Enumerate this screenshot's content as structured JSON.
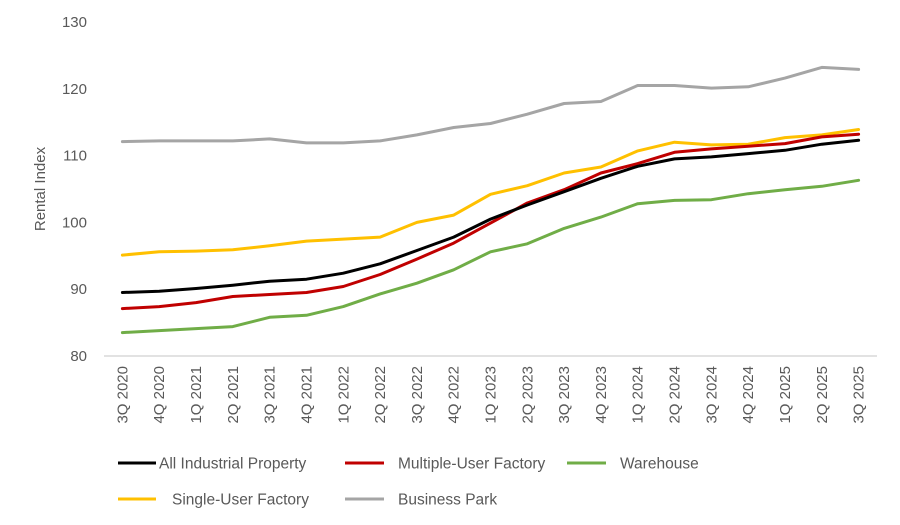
{
  "chart_data": {
    "type": "line",
    "title": "",
    "xlabel": "",
    "ylabel": "Rental Index",
    "ylim": [
      80,
      130
    ],
    "yticks": [
      80,
      90,
      100,
      110,
      120,
      130
    ],
    "ytick_labels": [
      "80",
      "90",
      "100",
      "110",
      "120",
      "130"
    ],
    "grid": false,
    "legend_position": "bottom",
    "categories": [
      "3Q 2020",
      "4Q 2020",
      "1Q 2021",
      "2Q 2021",
      "3Q 2021",
      "4Q 2021",
      "1Q 2022",
      "2Q 2022",
      "3Q 2022",
      "4Q 2022",
      "1Q 2023",
      "2Q 2023",
      "3Q 2023",
      "4Q 2023",
      "1Q 2024",
      "2Q 2024",
      "3Q 2024",
      "4Q 2024",
      "1Q 2025",
      "2Q 2025",
      "3Q 2025"
    ],
    "series": [
      {
        "name": "All Industrial Property",
        "color": "#000000",
        "values": [
          89.5,
          89.7,
          90.1,
          90.6,
          91.2,
          91.5,
          92.4,
          93.8,
          95.8,
          97.8,
          100.5,
          102.6,
          104.6,
          106.6,
          108.4,
          109.5,
          109.8,
          110.3,
          110.8,
          111.7,
          112.3
        ]
      },
      {
        "name": "Multiple-User Factory",
        "color": "#C00000",
        "values": [
          87.1,
          87.4,
          88.0,
          88.9,
          89.2,
          89.5,
          90.4,
          92.2,
          94.5,
          96.9,
          99.9,
          102.9,
          104.9,
          107.4,
          108.8,
          110.5,
          111.0,
          111.4,
          111.8,
          112.8,
          113.2
        ]
      },
      {
        "name": "Warehouse",
        "color": "#70AD47",
        "values": [
          83.5,
          83.8,
          84.1,
          84.4,
          85.8,
          86.1,
          87.4,
          89.3,
          90.9,
          92.9,
          95.6,
          96.8,
          99.1,
          100.8,
          102.8,
          103.3,
          103.4,
          104.3,
          104.9,
          105.4,
          106.3
        ]
      },
      {
        "name": "Single-User Factory",
        "color": "#FFC000",
        "values": [
          95.1,
          95.6,
          95.7,
          95.9,
          96.5,
          97.2,
          97.5,
          97.8,
          100.0,
          101.1,
          104.2,
          105.5,
          107.4,
          108.3,
          110.7,
          112.0,
          111.6,
          111.7,
          112.7,
          113.1,
          113.9
        ]
      },
      {
        "name": "Business Park",
        "color": "#A5A5A5",
        "values": [
          112.1,
          112.2,
          112.2,
          112.2,
          112.5,
          111.9,
          111.9,
          112.2,
          113.1,
          114.2,
          114.8,
          116.2,
          117.8,
          118.1,
          120.5,
          120.5,
          120.1,
          120.3,
          121.6,
          123.2,
          122.9
        ]
      }
    ]
  }
}
